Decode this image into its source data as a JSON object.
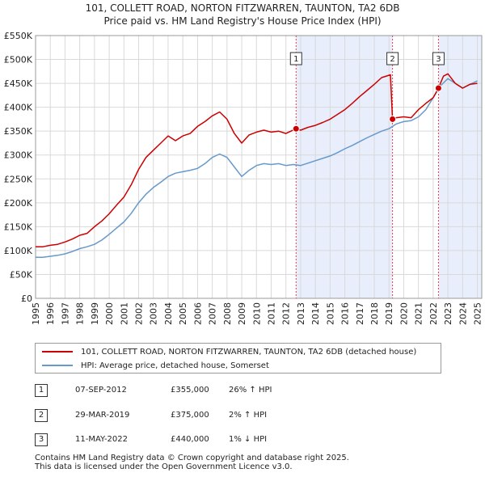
{
  "title": {
    "line1": "101, COLLETT ROAD, NORTON FITZWARREN, TAUNTON, TA2 6DB",
    "line2": "Price paid vs. HM Land Registry's House Price Index (HPI)"
  },
  "chart_data": {
    "type": "line",
    "title": "101, COLLETT ROAD, NORTON FITZWARREN, TAUNTON, TA2 6DB — Price paid vs. HM Land Registry's House Price Index (HPI)",
    "xlabel": "",
    "ylabel": "",
    "xlim": [
      1995,
      2025.3
    ],
    "ylim": [
      0,
      550000
    ],
    "grid": true,
    "y_ticks": [
      0,
      50000,
      100000,
      150000,
      200000,
      250000,
      300000,
      350000,
      400000,
      450000,
      500000,
      550000
    ],
    "y_tick_labels": [
      "£0",
      "£50K",
      "£100K",
      "£150K",
      "£200K",
      "£250K",
      "£300K",
      "£350K",
      "£400K",
      "£450K",
      "£500K",
      "£550K"
    ],
    "x_ticks": [
      1995,
      1996,
      1997,
      1998,
      1999,
      2000,
      2001,
      2002,
      2003,
      2004,
      2005,
      2006,
      2007,
      2008,
      2009,
      2010,
      2011,
      2012,
      2013,
      2014,
      2015,
      2016,
      2017,
      2018,
      2019,
      2020,
      2021,
      2022,
      2023,
      2024,
      2025
    ],
    "x_tick_labels": [
      "1995",
      "1996",
      "1997",
      "1998",
      "1999",
      "2000",
      "2001",
      "2002",
      "2003",
      "2004",
      "2005",
      "2006",
      "2007",
      "2008",
      "2009",
      "2010",
      "2011",
      "2012",
      "2013",
      "2014",
      "2015",
      "2016",
      "2017",
      "2018",
      "2019",
      "2020",
      "2021",
      "2022",
      "2023",
      "2024",
      "2025"
    ],
    "shaded_ranges": [
      [
        2012.69,
        2019.24
      ],
      [
        2022.36,
        2025.3
      ]
    ],
    "series": [
      {
        "name": "101, COLLETT ROAD, NORTON FITZWARREN, TAUNTON, TA2 6DB (detached house)",
        "color": "#cc0000",
        "x": [
          1995,
          1995.5,
          1996,
          1996.5,
          1997,
          1997.5,
          1998,
          1998.5,
          1999,
          1999.5,
          2000,
          2000.5,
          2001,
          2001.5,
          2002,
          2002.5,
          2003,
          2003.5,
          2004,
          2004.5,
          2005,
          2005.5,
          2006,
          2006.5,
          2007,
          2007.5,
          2008,
          2008.5,
          2009,
          2009.5,
          2010,
          2010.5,
          2011,
          2011.5,
          2012,
          2012.69,
          2013,
          2013.5,
          2014,
          2014.5,
          2015,
          2015.5,
          2016,
          2016.5,
          2017,
          2017.5,
          2018,
          2018.5,
          2019.1,
          2019.24,
          2019.5,
          2020,
          2020.5,
          2021,
          2021.5,
          2022,
          2022.36,
          2022.7,
          2023,
          2023.5,
          2024,
          2024.5,
          2025
        ],
        "values": [
          108000,
          108000,
          111000,
          113000,
          118000,
          124000,
          132000,
          136000,
          150000,
          162000,
          177000,
          195000,
          212000,
          238000,
          270000,
          295000,
          310000,
          325000,
          340000,
          330000,
          340000,
          345000,
          360000,
          370000,
          382000,
          390000,
          375000,
          345000,
          325000,
          342000,
          348000,
          352000,
          348000,
          350000,
          345000,
          355000,
          352000,
          358000,
          362000,
          368000,
          375000,
          385000,
          395000,
          408000,
          422000,
          435000,
          448000,
          462000,
          468000,
          375000,
          378000,
          380000,
          378000,
          395000,
          408000,
          420000,
          440000,
          465000,
          470000,
          450000,
          440000,
          448000,
          450000
        ]
      },
      {
        "name": "HPI: Average price, detached house, Somerset",
        "color": "#6699cc",
        "x": [
          1995,
          1995.5,
          1996,
          1996.5,
          1997,
          1997.5,
          1998,
          1998.5,
          1999,
          1999.5,
          2000,
          2000.5,
          2001,
          2001.5,
          2002,
          2002.5,
          2003,
          2003.5,
          2004,
          2004.5,
          2005,
          2005.5,
          2006,
          2006.5,
          2007,
          2007.5,
          2008,
          2008.5,
          2009,
          2009.5,
          2010,
          2010.5,
          2011,
          2011.5,
          2012,
          2012.5,
          2013,
          2013.5,
          2014,
          2014.5,
          2015,
          2015.5,
          2016,
          2016.5,
          2017,
          2017.5,
          2018,
          2018.5,
          2019,
          2019.5,
          2020,
          2020.5,
          2021,
          2021.5,
          2022,
          2022.5,
          2023,
          2023.5,
          2024,
          2024.5,
          2025
        ],
        "values": [
          86000,
          86000,
          88000,
          90000,
          93000,
          98000,
          104000,
          108000,
          113000,
          122000,
          134000,
          147000,
          160000,
          178000,
          200000,
          218000,
          232000,
          243000,
          255000,
          262000,
          265000,
          268000,
          272000,
          282000,
          295000,
          302000,
          295000,
          275000,
          255000,
          268000,
          278000,
          282000,
          280000,
          282000,
          278000,
          280000,
          278000,
          283000,
          288000,
          293000,
          298000,
          305000,
          313000,
          320000,
          328000,
          336000,
          343000,
          350000,
          355000,
          365000,
          370000,
          372000,
          380000,
          395000,
          420000,
          445000,
          460000,
          450000,
          440000,
          448000,
          455000
        ]
      }
    ],
    "markers": [
      {
        "label": "1",
        "x": 2012.69,
        "y": 355000
      },
      {
        "label": "2",
        "x": 2019.24,
        "y": 375000
      },
      {
        "label": "3",
        "x": 2022.36,
        "y": 440000
      }
    ],
    "legend_position": "bottom"
  },
  "legend": {
    "property_label": "101, COLLETT ROAD, NORTON FITZWARREN, TAUNTON, TA2 6DB (detached house)",
    "hpi_label": "HPI: Average price, detached house, Somerset",
    "property_color": "#cc0000",
    "hpi_color": "#6699cc"
  },
  "transactions": [
    {
      "num": "1",
      "date": "07-SEP-2012",
      "price": "£355,000",
      "hpi": "26% ↑ HPI"
    },
    {
      "num": "2",
      "date": "29-MAR-2019",
      "price": "£375,000",
      "hpi": "2% ↑ HPI"
    },
    {
      "num": "3",
      "date": "11-MAY-2022",
      "price": "£440,000",
      "hpi": "1% ↓ HPI"
    }
  ],
  "footer": {
    "line1": "Contains HM Land Registry data © Crown copyright and database right 2025.",
    "line2": "This data is licensed under the Open Government Licence v3.0."
  }
}
